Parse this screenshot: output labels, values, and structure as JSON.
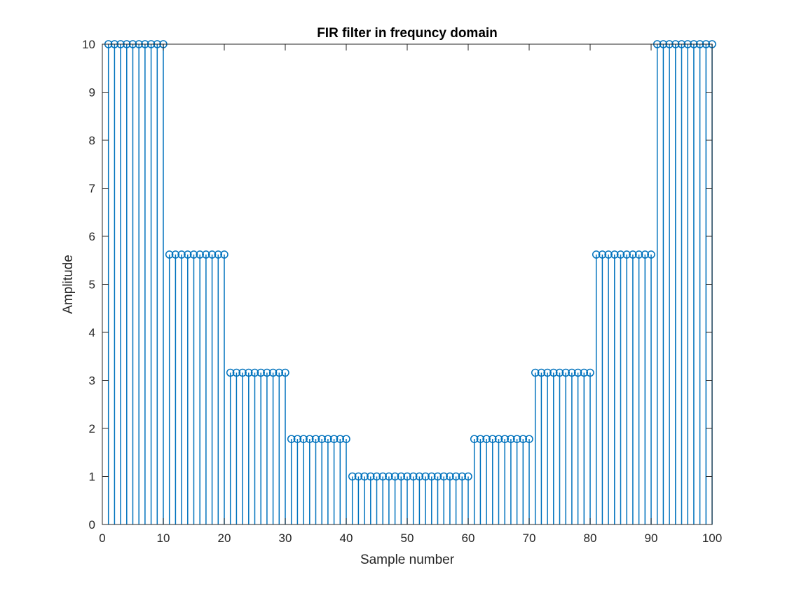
{
  "chart_data": {
    "type": "stem",
    "title": "FIR filter in frequncy domain",
    "xlabel": "Sample number",
    "ylabel": "Amplitude",
    "xlim": [
      0,
      100
    ],
    "ylim": [
      0,
      10
    ],
    "xticks": [
      0,
      10,
      20,
      30,
      40,
      50,
      60,
      70,
      80,
      90,
      100
    ],
    "yticks": [
      0,
      1,
      2,
      3,
      4,
      5,
      6,
      7,
      8,
      9,
      10
    ],
    "grid": false,
    "series_color": "#0072BD",
    "x": [
      1,
      2,
      3,
      4,
      5,
      6,
      7,
      8,
      9,
      10,
      11,
      12,
      13,
      14,
      15,
      16,
      17,
      18,
      19,
      20,
      21,
      22,
      23,
      24,
      25,
      26,
      27,
      28,
      29,
      30,
      31,
      32,
      33,
      34,
      35,
      36,
      37,
      38,
      39,
      40,
      41,
      42,
      43,
      44,
      45,
      46,
      47,
      48,
      49,
      50,
      51,
      52,
      53,
      54,
      55,
      56,
      57,
      58,
      59,
      60,
      61,
      62,
      63,
      64,
      65,
      66,
      67,
      68,
      69,
      70,
      71,
      72,
      73,
      74,
      75,
      76,
      77,
      78,
      79,
      80,
      81,
      82,
      83,
      84,
      85,
      86,
      87,
      88,
      89,
      90,
      91,
      92,
      93,
      94,
      95,
      96,
      97,
      98,
      99,
      100
    ],
    "values": [
      10,
      10,
      10,
      10,
      10,
      10,
      10,
      10,
      10,
      10,
      5.62,
      5.62,
      5.62,
      5.62,
      5.62,
      5.62,
      5.62,
      5.62,
      5.62,
      5.62,
      3.16,
      3.16,
      3.16,
      3.16,
      3.16,
      3.16,
      3.16,
      3.16,
      3.16,
      3.16,
      1.78,
      1.78,
      1.78,
      1.78,
      1.78,
      1.78,
      1.78,
      1.78,
      1.78,
      1.78,
      1,
      1,
      1,
      1,
      1,
      1,
      1,
      1,
      1,
      1,
      1,
      1,
      1,
      1,
      1,
      1,
      1,
      1,
      1,
      1,
      1.78,
      1.78,
      1.78,
      1.78,
      1.78,
      1.78,
      1.78,
      1.78,
      1.78,
      1.78,
      3.16,
      3.16,
      3.16,
      3.16,
      3.16,
      3.16,
      3.16,
      3.16,
      3.16,
      3.16,
      5.62,
      5.62,
      5.62,
      5.62,
      5.62,
      5.62,
      5.62,
      5.62,
      5.62,
      5.62,
      10,
      10,
      10,
      10,
      10,
      10,
      10,
      10,
      10,
      10
    ]
  }
}
